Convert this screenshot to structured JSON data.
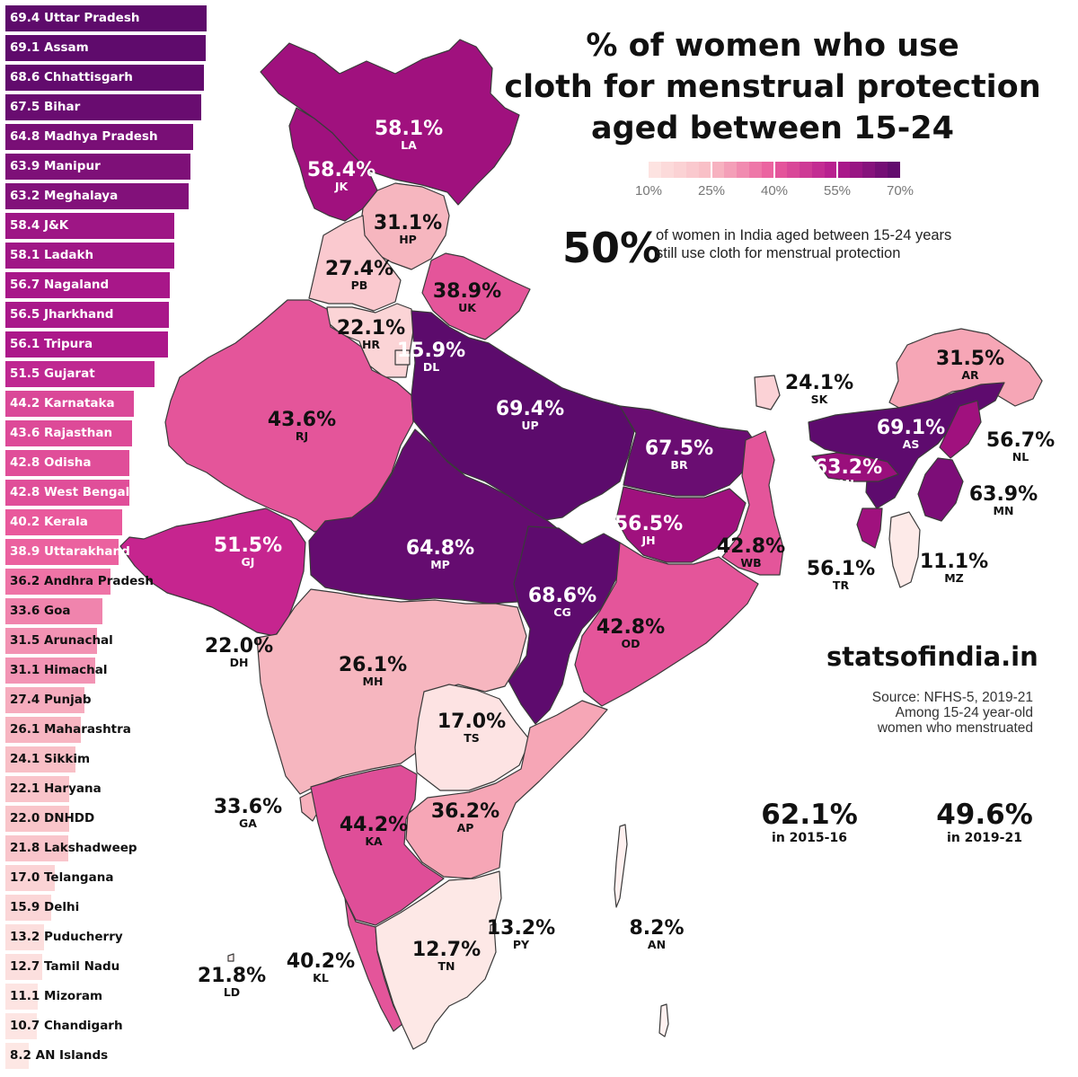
{
  "title": {
    "line1": "% of women who use",
    "line2": "cloth for menstrual protection",
    "line3": "aged between 15-24"
  },
  "legend": {
    "ticks": [
      "10%",
      "25%",
      "40%",
      "55%",
      "70%"
    ],
    "colors": [
      "#fde7e4",
      "#f8bcc4",
      "#ea5a9c",
      "#b2198d",
      "#5a0a6a"
    ]
  },
  "headline": {
    "value": "50%",
    "line1": "of women in India aged between 15-24 years",
    "line2": "still use cloth for menstrual protection"
  },
  "brand": "statsofindia.in",
  "source": {
    "line1": "Source: NFHS-5, 2019-21",
    "line2": "Among 15-24 year-old",
    "line3": "women who menstruated"
  },
  "comparison": [
    {
      "value": "62.1%",
      "label": "in 2015-16"
    },
    {
      "value": "49.6%",
      "label": "in 2019-21"
    }
  ],
  "chart_data": {
    "type": "bar",
    "categories": [
      "Uttar Pradesh",
      "Assam",
      "Chhattisgarh",
      "Bihar",
      "Madhya Pradesh",
      "Manipur",
      "Meghalaya",
      "J&K",
      "Ladakh",
      "Nagaland",
      "Jharkhand",
      "Tripura",
      "Gujarat",
      "Karnataka",
      "Rajasthan",
      "Odisha",
      "West Bengal",
      "Kerala",
      "Uttarakhand",
      "Andhra Pradesh",
      "Goa",
      "Arunachal",
      "Himachal",
      "Punjab",
      "Maharashtra",
      "Sikkim",
      "Haryana",
      "DNHDD",
      "Lakshadweep",
      "Telangana",
      "Delhi",
      "Puducherry",
      "Tamil Nadu",
      "Mizoram",
      "Chandigarh",
      "AN Islands"
    ],
    "values": [
      69.4,
      69.1,
      68.6,
      67.5,
      64.8,
      63.9,
      63.2,
      58.4,
      58.1,
      56.7,
      56.5,
      56.1,
      51.5,
      44.2,
      43.6,
      42.8,
      42.8,
      40.2,
      38.9,
      36.2,
      33.6,
      31.5,
      31.1,
      27.4,
      26.1,
      24.1,
      22.1,
      22.0,
      21.8,
      17.0,
      15.9,
      13.2,
      12.7,
      11.1,
      10.7,
      8.2
    ],
    "value_labels": [
      "69.4",
      "69.1",
      "68.6",
      "67.5",
      "64.8",
      "63.9",
      "63.2",
      "58.4",
      "58.1",
      "56.7",
      "56.5",
      "56.1",
      "51.5",
      "44.2",
      "43.6",
      "42.8",
      "42.8",
      "40.2",
      "38.9",
      "36.2",
      "33.6",
      "31.5",
      "31.1",
      "27.4",
      "26.1",
      "24.1",
      "22.1",
      "22.0",
      "21.8",
      "17.0",
      "15.9",
      "13.2",
      "12.7",
      "11.1",
      "10.7",
      "8.2"
    ],
    "color_scale": {
      "min": 10,
      "max": 70
    }
  },
  "map_labels": [
    {
      "value": "58.1%",
      "code": "LA"
    },
    {
      "value": "58.4%",
      "code": "JK"
    },
    {
      "value": "31.1%",
      "code": "HP"
    },
    {
      "value": "27.4%",
      "code": "PB"
    },
    {
      "value": "38.9%",
      "code": "UK"
    },
    {
      "value": "22.1%",
      "code": "HR"
    },
    {
      "value": "15.9%",
      "code": "DL"
    },
    {
      "value": "43.6%",
      "code": "RJ"
    },
    {
      "value": "69.4%",
      "code": "UP"
    },
    {
      "value": "67.5%",
      "code": "BR"
    },
    {
      "value": "24.1%",
      "code": "SK"
    },
    {
      "value": "31.5%",
      "code": "AR"
    },
    {
      "value": "69.1%",
      "code": "AS"
    },
    {
      "value": "56.7%",
      "code": "NL"
    },
    {
      "value": "63.2%",
      "code": "ML"
    },
    {
      "value": "63.9%",
      "code": "MN"
    },
    {
      "value": "51.5%",
      "code": "GJ"
    },
    {
      "value": "64.8%",
      "code": "MP"
    },
    {
      "value": "56.5%",
      "code": "JH"
    },
    {
      "value": "42.8%",
      "code": "WB"
    },
    {
      "value": "56.1%",
      "code": "TR"
    },
    {
      "value": "11.1%",
      "code": "MZ"
    },
    {
      "value": "68.6%",
      "code": "CG"
    },
    {
      "value": "42.8%",
      "code": "OD"
    },
    {
      "value": "22.0%",
      "code": "DH"
    },
    {
      "value": "26.1%",
      "code": "MH"
    },
    {
      "value": "17.0%",
      "code": "TS"
    },
    {
      "value": "33.6%",
      "code": "GA"
    },
    {
      "value": "44.2%",
      "code": "KA"
    },
    {
      "value": "36.2%",
      "code": "AP"
    },
    {
      "value": "13.2%",
      "code": "PY"
    },
    {
      "value": "8.2%",
      "code": "AN"
    },
    {
      "value": "12.7%",
      "code": "TN"
    },
    {
      "value": "40.2%",
      "code": "KL"
    },
    {
      "value": "21.8%",
      "code": "LD"
    }
  ]
}
